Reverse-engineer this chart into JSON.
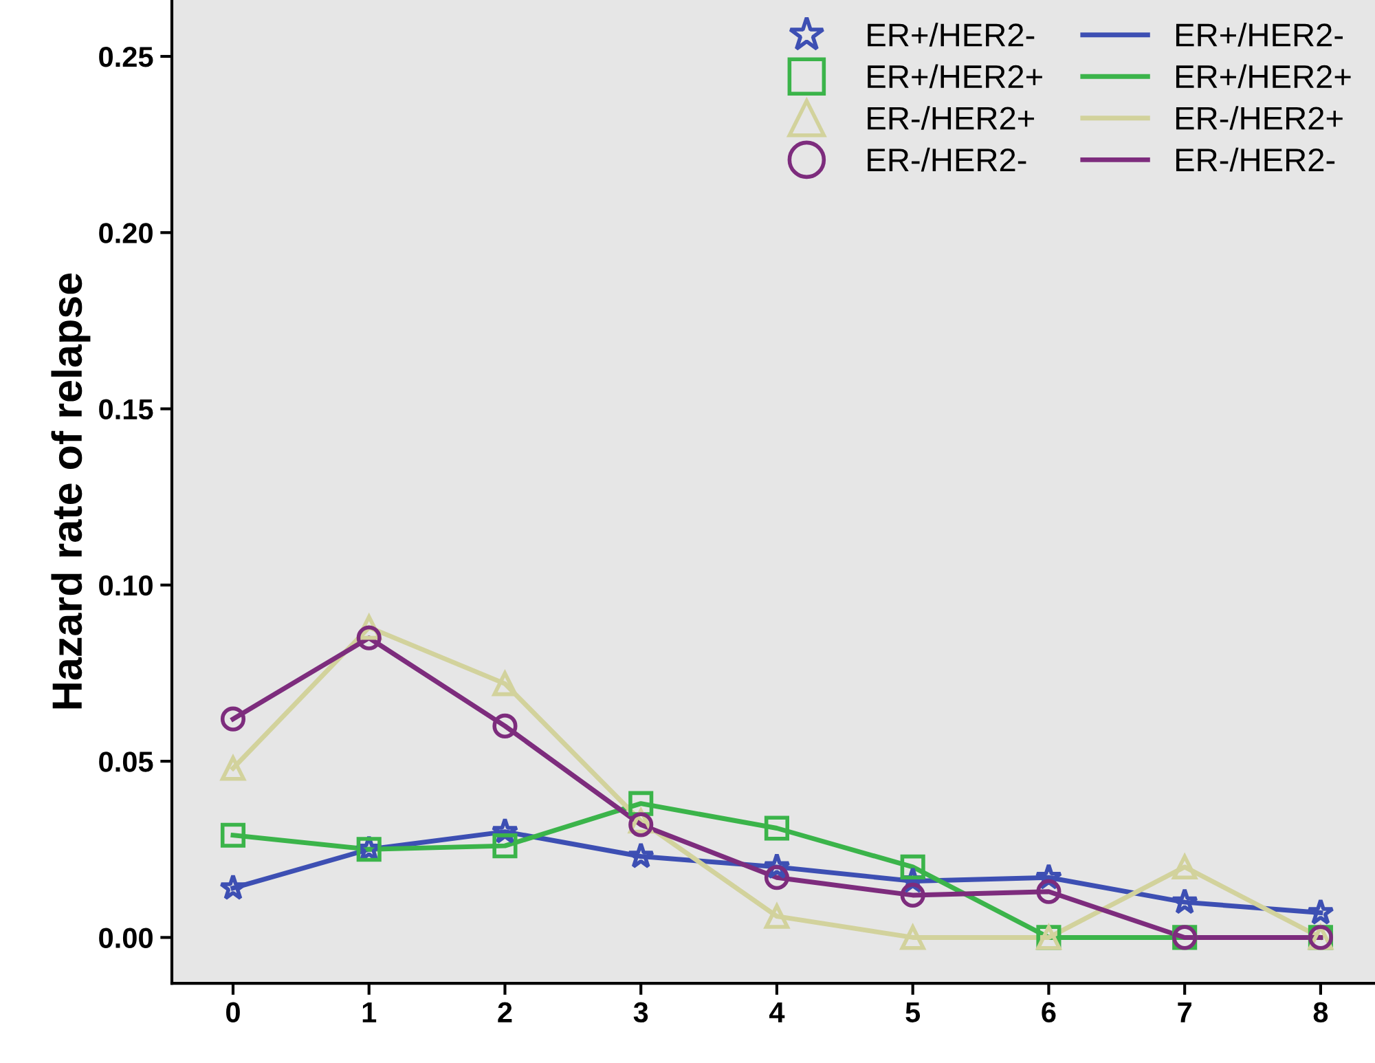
{
  "chart_data": {
    "type": "line",
    "ylabel": "Hazard rate of relapse",
    "x": [
      0,
      1,
      2,
      3,
      4,
      5,
      6,
      7,
      8
    ],
    "xlim": [
      -0.45,
      8.4
    ],
    "xticks": [
      0,
      1,
      2,
      3,
      4,
      5,
      6,
      7,
      8
    ],
    "ylim": [
      -0.013,
      0.266
    ],
    "yticks": [
      {
        "value": 0,
        "label": "0.00"
      },
      {
        "value": 0.05,
        "label": "0.05"
      },
      {
        "value": 0.1,
        "label": "0.10"
      },
      {
        "value": 0.15,
        "label": "0.15"
      },
      {
        "value": 0.2,
        "label": "0.20"
      },
      {
        "value": 0.25,
        "label": "0.25"
      }
    ],
    "grid": false,
    "legend": "top right",
    "line_style": "solid",
    "series": [
      {
        "name": "ER+/HER2-",
        "color": "#3d4fb3",
        "marker": "star",
        "values": [
          0.014,
          0.025,
          0.03,
          0.023,
          0.02,
          0.016,
          0.017,
          0.01,
          0.007
        ]
      },
      {
        "name": "ER+/HER2+",
        "color": "#3bb44a",
        "marker": "square",
        "values": [
          0.029,
          0.025,
          0.026,
          0.038,
          0.031,
          0.02,
          0.0,
          0.0,
          0.0
        ]
      },
      {
        "name": "ER-/HER2+",
        "color": "#d2d29c",
        "marker": "triangle",
        "values": [
          0.048,
          0.088,
          0.072,
          0.033,
          0.006,
          0.0,
          0.0,
          0.02,
          0.0
        ]
      },
      {
        "name": "ER-/HER2-",
        "color": "#7d2c7d",
        "marker": "circle",
        "values": [
          0.062,
          0.085,
          0.06,
          0.032,
          0.017,
          0.012,
          0.013,
          0.0,
          0.0
        ]
      }
    ]
  }
}
